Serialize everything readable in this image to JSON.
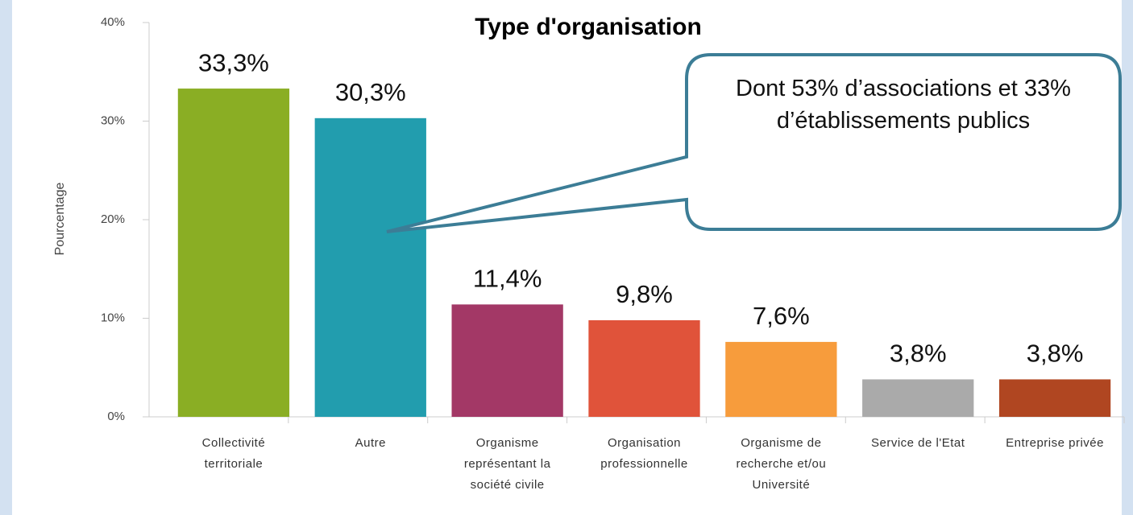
{
  "chart_data": {
    "type": "bar",
    "title": "Type d'organisation",
    "y_label": "Pourcentage",
    "categories": [
      "Collectivité territoriale",
      "Autre",
      "Organisme représentant la société civile",
      "Organisation professionnelle",
      "Organisme de recherche et/ou Université",
      "Service de l'Etat",
      "Entreprise privée"
    ],
    "values": [
      33.3,
      30.3,
      11.4,
      9.8,
      7.6,
      3.8,
      3.8
    ],
    "value_labels": [
      "33,3%",
      "30,3%",
      "11,4%",
      "9,8%",
      "7,6%",
      "3,8%",
      "3,8%"
    ],
    "colors": [
      "#8aae24",
      "#229dae",
      "#a33866",
      "#e0533a",
      "#f79c3c",
      "#aaaaaa",
      "#b04621"
    ],
    "ylim": [
      0,
      40
    ],
    "yticks": [
      {
        "value": 0,
        "label": "0%"
      },
      {
        "value": 10,
        "label": "10%"
      },
      {
        "value": 20,
        "label": "20%"
      },
      {
        "value": 30,
        "label": "30%"
      },
      {
        "value": 40,
        "label": "40%"
      }
    ],
    "annotation": "Dont 53% d’associations et 33% d’établissements publics"
  }
}
